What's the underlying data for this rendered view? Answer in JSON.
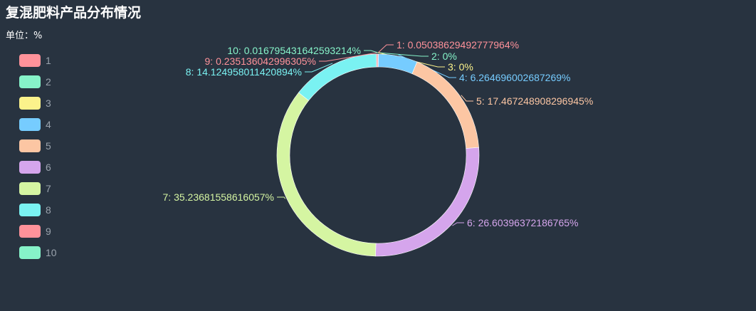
{
  "chart_data": {
    "type": "pie",
    "title": "复混肥料产品分布情况",
    "unit_label": "单位：%",
    "legend_position": "left",
    "slices": [
      {
        "name": "1",
        "value": 0.05038629492777964,
        "label": "1: 0.05038629492777964%",
        "color": "#ff929a"
      },
      {
        "name": "2",
        "value": 0,
        "label": "2: 0%",
        "color": "#86f3c9"
      },
      {
        "name": "3",
        "value": 0,
        "label": "3: 0%",
        "color": "#fbf28b"
      },
      {
        "name": "4",
        "value": 6.264696002687269,
        "label": "4: 6.264696002687269%",
        "color": "#76ccff"
      },
      {
        "name": "5",
        "value": 17.467248908296945,
        "label": "5: 17.467248908296945%",
        "color": "#fcc6a3"
      },
      {
        "name": "6",
        "value": 26.60396372186765,
        "label": "6: 26.60396372186765%",
        "color": "#d5a5ec"
      },
      {
        "name": "7",
        "value": 35.23681558616057,
        "label": "7: 35.23681558616057%",
        "color": "#d5f5a2"
      },
      {
        "name": "8",
        "value": 14.124958011420894,
        "label": "8: 14.124958011420894%",
        "color": "#7af2f2"
      },
      {
        "name": "9",
        "value": 0.235136042996305,
        "label": "9: 0.235136042996305%",
        "color": "#ff929a"
      },
      {
        "name": "10",
        "value": 0.016795431642593214,
        "label": "10: 0.016795431642593214%",
        "color": "#86f3c9"
      }
    ]
  }
}
